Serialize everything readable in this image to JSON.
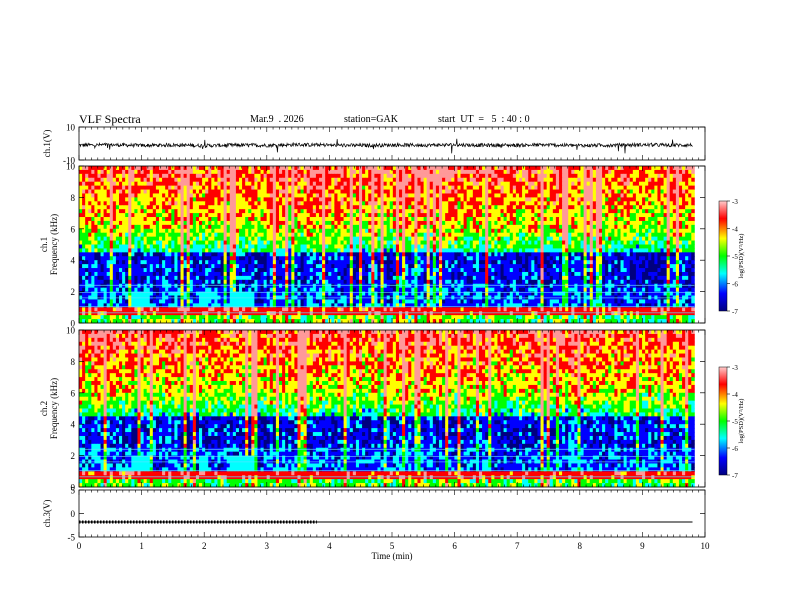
{
  "header": {
    "title": "VLF Spectra",
    "date": "Mar.9  . 2026",
    "station": "station=GAK",
    "start": "start  UT  =   5  : 40 : 0"
  },
  "chart_data": [
    {
      "type": "line",
      "name": "ch1-waveform",
      "ylabel": "ch.1(V)",
      "ylim": [
        -10,
        10
      ],
      "yticks": [
        "10",
        "-10"
      ],
      "x": [
        0,
        0.5,
        1,
        1.5,
        2,
        2.5,
        3,
        3.5,
        4,
        4.5,
        5,
        5.5,
        6,
        6.5,
        7,
        7.5,
        8,
        8.5,
        9,
        9.5,
        9.8
      ],
      "values": [
        -1,
        -0.8,
        -1.2,
        -0.9,
        -1.3,
        -1,
        -1.1,
        -0.7,
        -1,
        -1.2,
        -0.9,
        -1,
        -0.8,
        -1.1,
        -1,
        -0.9,
        -1.2,
        -1,
        -0.8,
        -1,
        -0.9
      ]
    },
    {
      "type": "heatmap",
      "name": "ch1-spectrogram",
      "ylabel": "ch.1\nFrequency (kHz)",
      "ylim": [
        0,
        10
      ],
      "yticks": [
        "0",
        "2",
        "4",
        "6",
        "8",
        "10"
      ],
      "colorbar": {
        "label": "log(PSD)(V²/Hz)",
        "range": [
          -7,
          -3
        ],
        "ticks": [
          "-3",
          "-4",
          "-5",
          "-6",
          "-7"
        ]
      }
    },
    {
      "type": "heatmap",
      "name": "ch2-spectrogram",
      "ylabel": "ch.2\nFrequency (kHz)",
      "ylim": [
        0,
        10
      ],
      "yticks": [
        "0",
        "2",
        "4",
        "6",
        "8",
        "10"
      ],
      "colorbar": {
        "label": "log(PSD)(V²/Hz)",
        "range": [
          -7,
          -3
        ],
        "ticks": [
          "-3",
          "-4",
          "-5",
          "-6",
          "-7"
        ]
      }
    },
    {
      "type": "line",
      "name": "ch3-signal",
      "ylabel": "ch.3(V)",
      "ylim": [
        -5,
        5
      ],
      "yticks": [
        "5",
        "0",
        "-5"
      ],
      "x": [
        0,
        3.8,
        9.8
      ],
      "values": [
        -1.8,
        -1.8,
        -1.8
      ]
    }
  ],
  "xaxis": {
    "label": "Time (min)",
    "range": [
      0,
      10
    ],
    "ticks": [
      "0",
      "1",
      "2",
      "3",
      "4",
      "5",
      "6",
      "7",
      "8",
      "9",
      "10"
    ]
  },
  "colors": {
    "spectral": [
      "#00007f",
      "#0000ff",
      "#00ffff",
      "#00ff00",
      "#ffff00",
      "#ff0000",
      "#ff9999"
    ]
  }
}
